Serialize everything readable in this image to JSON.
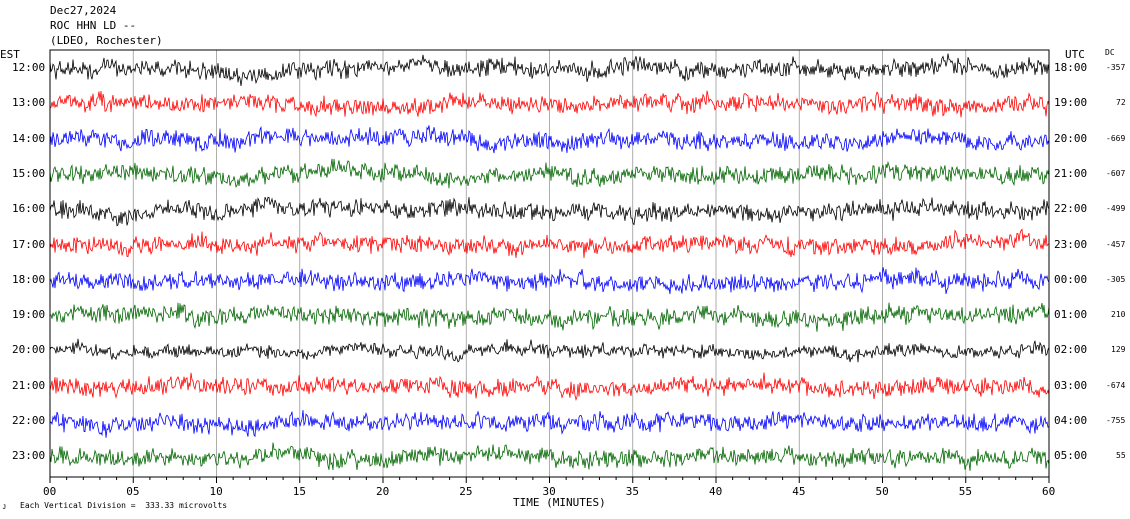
{
  "header": {
    "date": "Dec27,2024",
    "station": "ROC HHN LD --",
    "network": "(LDEO, Rochester)"
  },
  "labels": {
    "left_tz": "EST",
    "right_tz": "UTC",
    "dc_header": "DC",
    "xlabel": "TIME (MINUTES)",
    "scale_note": "Each Vertical Division =  333.33 microvolts",
    "corner_mark": "ᴊ"
  },
  "chart_data": {
    "type": "line",
    "xlabel": "TIME (MINUTES)",
    "xlim": [
      0,
      60
    ],
    "x_ticks": [
      "00",
      "05",
      "10",
      "15",
      "20",
      "25",
      "30",
      "35",
      "40",
      "45",
      "50",
      "55",
      "60"
    ],
    "grid": "vertical lines every 5 minutes",
    "rows": [
      {
        "est": "12:00",
        "utc": "18:00",
        "dc": "-357",
        "color": "#000000"
      },
      {
        "est": "13:00",
        "utc": "19:00",
        "dc": "72",
        "color": "#ff0000"
      },
      {
        "est": "14:00",
        "utc": "20:00",
        "dc": "-669",
        "color": "#0000ff"
      },
      {
        "est": "15:00",
        "utc": "21:00",
        "dc": "-607",
        "color": "#006600"
      },
      {
        "est": "16:00",
        "utc": "22:00",
        "dc": "-499",
        "color": "#000000"
      },
      {
        "est": "17:00",
        "utc": "23:00",
        "dc": "-457",
        "color": "#ff0000"
      },
      {
        "est": "18:00",
        "utc": "00:00",
        "dc": "-305",
        "color": "#0000ff"
      },
      {
        "est": "19:00",
        "utc": "01:00",
        "dc": "210",
        "color": "#006600"
      },
      {
        "est": "20:00",
        "utc": "02:00",
        "dc": "129",
        "color": "#000000"
      },
      {
        "est": "21:00",
        "utc": "03:00",
        "dc": "-674",
        "color": "#ff0000"
      },
      {
        "est": "22:00",
        "utc": "04:00",
        "dc": "-755",
        "color": "#0000ff"
      },
      {
        "est": "23:00",
        "utc": "05:00",
        "dc": "55",
        "color": "#006600"
      }
    ]
  }
}
